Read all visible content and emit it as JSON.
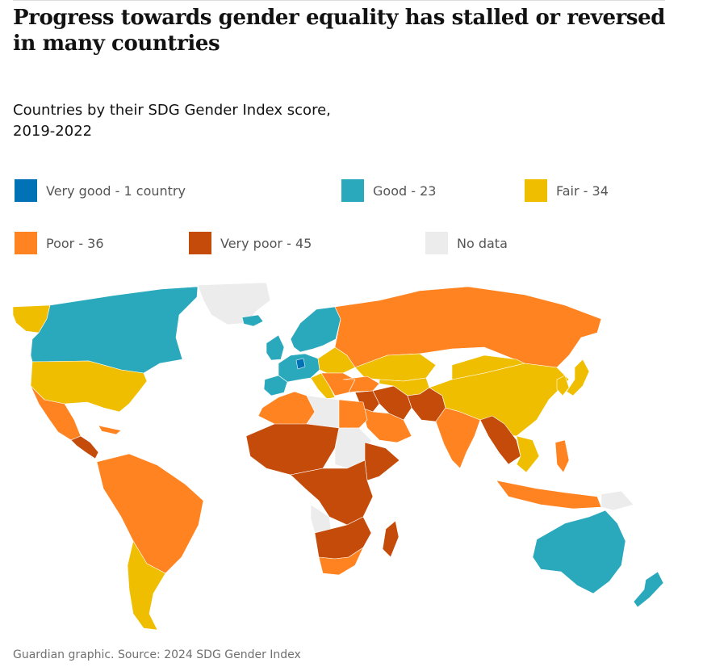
{
  "article": {
    "headline": "Progress towards gender equality has stalled or reversed in many countries"
  },
  "chart": {
    "subtitle": "Countries by their SDG Gender Index score, 2019-2022",
    "source": "Guardian graphic. Source: 2024 SDG Gender Index"
  },
  "legend": [
    {
      "label": "Very good - 1 country",
      "category": "very-good",
      "count": 1,
      "color": "#0072b5"
    },
    {
      "label": "Good - 23",
      "category": "good",
      "count": 23,
      "color": "#2aa9bd"
    },
    {
      "label": "Fair - 34",
      "category": "fair",
      "count": 34,
      "color": "#f0be00"
    },
    {
      "label": "Poor - 36",
      "category": "poor",
      "count": 36,
      "color": "#ff8320"
    },
    {
      "label": "Very poor - 45",
      "category": "very-poor",
      "count": 45,
      "color": "#c44b0a"
    },
    {
      "label": "No data",
      "category": "no-data",
      "count": null,
      "color": "#ececec"
    }
  ],
  "regions": [
    {
      "name": "greenland",
      "category": "no-data"
    },
    {
      "name": "alaska",
      "category": "fair"
    },
    {
      "name": "canada",
      "category": "good"
    },
    {
      "name": "usa",
      "category": "fair"
    },
    {
      "name": "mexico",
      "category": "poor"
    },
    {
      "name": "central-america",
      "category": "very-poor"
    },
    {
      "name": "cuba",
      "category": "poor"
    },
    {
      "name": "south-america-north",
      "category": "poor"
    },
    {
      "name": "southern-cone",
      "category": "fair"
    },
    {
      "name": "iceland",
      "category": "good"
    },
    {
      "name": "uk-ireland",
      "category": "good"
    },
    {
      "name": "scandinavia",
      "category": "good"
    },
    {
      "name": "western-europe",
      "category": "good"
    },
    {
      "name": "iberia",
      "category": "good"
    },
    {
      "name": "denmark",
      "category": "very-good"
    },
    {
      "name": "italy",
      "category": "fair"
    },
    {
      "name": "eastern-europe",
      "category": "fair"
    },
    {
      "name": "balkans",
      "category": "poor"
    },
    {
      "name": "russia",
      "category": "poor"
    },
    {
      "name": "kazakhstan",
      "category": "fair"
    },
    {
      "name": "turkey",
      "category": "poor"
    },
    {
      "name": "middle-east",
      "category": "very-poor"
    },
    {
      "name": "arabia",
      "category": "poor"
    },
    {
      "name": "iran",
      "category": "very-poor"
    },
    {
      "name": "central-asia",
      "category": "fair"
    },
    {
      "name": "pakistan",
      "category": "very-poor"
    },
    {
      "name": "india",
      "category": "poor"
    },
    {
      "name": "china",
      "category": "fair"
    },
    {
      "name": "mongolia",
      "category": "fair"
    },
    {
      "name": "korea",
      "category": "fair"
    },
    {
      "name": "japan",
      "category": "fair"
    },
    {
      "name": "myanmar",
      "category": "very-poor"
    },
    {
      "name": "southeast-asia",
      "category": "fair"
    },
    {
      "name": "indonesia",
      "category": "poor"
    },
    {
      "name": "philippines",
      "category": "poor"
    },
    {
      "name": "png",
      "category": "no-data"
    },
    {
      "name": "australia",
      "category": "good"
    },
    {
      "name": "new-zealand",
      "category": "good"
    },
    {
      "name": "maghreb",
      "category": "poor"
    },
    {
      "name": "libya",
      "category": "no-data"
    },
    {
      "name": "egypt",
      "category": "poor"
    },
    {
      "name": "sahel-west-africa",
      "category": "very-poor"
    },
    {
      "name": "sudan",
      "category": "no-data"
    },
    {
      "name": "horn-of-africa",
      "category": "very-poor"
    },
    {
      "name": "central-africa",
      "category": "very-poor"
    },
    {
      "name": "angola",
      "category": "no-data"
    },
    {
      "name": "southern-africa",
      "category": "very-poor"
    },
    {
      "name": "south-africa",
      "category": "poor"
    },
    {
      "name": "madagascar",
      "category": "very-poor"
    }
  ]
}
